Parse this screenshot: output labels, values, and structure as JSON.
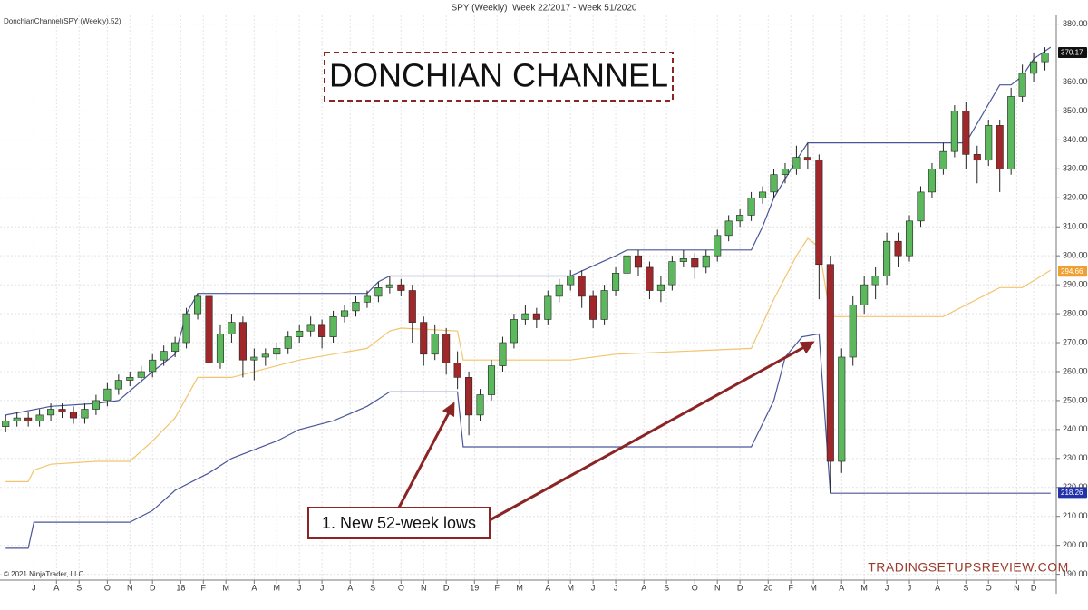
{
  "chart_data": {
    "type": "candlestick",
    "title": "SPY (Weekly)  Week 22/2017 - Week 51/2020",
    "indicator_label": "DonchianChannel(SPY (Weekly),52)",
    "copyright": "© 2021 NinjaTrader, LLC",
    "headline": "DONCHIAN CHANNEL",
    "annotation": "1. New 52-week lows",
    "watermark": "TRADINGSETUPSREVIEW.COM",
    "grid": true,
    "up_color": "#5cb85c",
    "down_color": "#a0282a",
    "xlim": [
      -1,
      186
    ],
    "ylim": [
      188,
      383
    ],
    "xticks": [
      {
        "value": 5,
        "label": "J"
      },
      {
        "value": 9,
        "label": "A"
      },
      {
        "value": 13,
        "label": "S"
      },
      {
        "value": 18,
        "label": "O"
      },
      {
        "value": 22,
        "label": "N"
      },
      {
        "value": 26,
        "label": "D"
      },
      {
        "value": 31,
        "label": "18"
      },
      {
        "value": 35,
        "label": "F"
      },
      {
        "value": 39,
        "label": "M"
      },
      {
        "value": 44,
        "label": "A"
      },
      {
        "value": 48,
        "label": "M"
      },
      {
        "value": 52,
        "label": "J"
      },
      {
        "value": 56,
        "label": "J"
      },
      {
        "value": 61,
        "label": "A"
      },
      {
        "value": 65,
        "label": "S"
      },
      {
        "value": 70,
        "label": "O"
      },
      {
        "value": 74,
        "label": "N"
      },
      {
        "value": 78,
        "label": "D"
      },
      {
        "value": 83,
        "label": "19"
      },
      {
        "value": 87,
        "label": "F"
      },
      {
        "value": 91,
        "label": "M"
      },
      {
        "value": 96,
        "label": "A"
      },
      {
        "value": 100,
        "label": "M"
      },
      {
        "value": 104,
        "label": "J"
      },
      {
        "value": 108,
        "label": "J"
      },
      {
        "value": 113,
        "label": "A"
      },
      {
        "value": 117,
        "label": "S"
      },
      {
        "value": 122,
        "label": "O"
      },
      {
        "value": 126,
        "label": "N"
      },
      {
        "value": 130,
        "label": "D"
      },
      {
        "value": 135,
        "label": "20"
      },
      {
        "value": 139,
        "label": "F"
      },
      {
        "value": 143,
        "label": "M"
      },
      {
        "value": 148,
        "label": "A"
      },
      {
        "value": 152,
        "label": "M"
      },
      {
        "value": 156,
        "label": "J"
      },
      {
        "value": 160,
        "label": "J"
      },
      {
        "value": 165,
        "label": "A"
      },
      {
        "value": 170,
        "label": "S"
      },
      {
        "value": 174,
        "label": "O"
      },
      {
        "value": 179,
        "label": "N"
      },
      {
        "value": 182,
        "label": "D"
      }
    ],
    "yticks": [
      {
        "value": 190,
        "label": "190.00"
      },
      {
        "value": 200,
        "label": "200.00"
      },
      {
        "value": 210,
        "label": "210.00"
      },
      {
        "value": 220,
        "label": "220.00"
      },
      {
        "value": 230,
        "label": "230.00"
      },
      {
        "value": 240,
        "label": "240.00"
      },
      {
        "value": 250,
        "label": "250.00"
      },
      {
        "value": 260,
        "label": "260.00"
      },
      {
        "value": 270,
        "label": "270.00"
      },
      {
        "value": 280,
        "label": "280.00"
      },
      {
        "value": 290,
        "label": "290.00"
      },
      {
        "value": 300,
        "label": "300.00"
      },
      {
        "value": 310,
        "label": "310.00"
      },
      {
        "value": 320,
        "label": "320.00"
      },
      {
        "value": 330,
        "label": "330.00"
      },
      {
        "value": 340,
        "label": "340.00"
      },
      {
        "value": 350,
        "label": "350.00"
      },
      {
        "value": 360,
        "label": "360.00"
      },
      {
        "value": 370,
        "label": "370.00"
      },
      {
        "value": 380,
        "label": "380.00"
      }
    ],
    "x": [
      0,
      2,
      4,
      6,
      8,
      10,
      12,
      14,
      16,
      18,
      20,
      22,
      24,
      26,
      28,
      30,
      32,
      34,
      36,
      38,
      40,
      42,
      44,
      46,
      48,
      50,
      52,
      54,
      56,
      58,
      60,
      62,
      64,
      66,
      68,
      70,
      72,
      74,
      76,
      78,
      80,
      82,
      84,
      86,
      88,
      90,
      92,
      94,
      96,
      98,
      100,
      102,
      104,
      106,
      108,
      110,
      112,
      114,
      116,
      118,
      120,
      122,
      124,
      126,
      128,
      130,
      132,
      134,
      136,
      138,
      140,
      142,
      144,
      146,
      148,
      150,
      152,
      154,
      156,
      158,
      160,
      162,
      164,
      166,
      168,
      170,
      172,
      174,
      176,
      178,
      180,
      182,
      184
    ],
    "open": [
      241,
      243,
      244,
      243,
      245,
      247,
      246,
      244,
      247,
      250,
      254,
      257,
      258,
      260,
      264,
      267,
      270,
      280,
      286,
      263,
      273,
      277,
      264,
      265,
      266,
      268,
      272,
      274,
      276,
      272,
      279,
      281,
      284,
      286,
      289,
      290,
      288,
      277,
      266,
      273,
      263,
      258,
      245,
      252,
      262,
      270,
      278,
      280,
      278,
      286,
      290,
      293,
      286,
      278,
      288,
      294,
      300,
      296,
      288,
      290,
      298,
      299,
      296,
      300,
      307,
      312,
      314,
      320,
      322,
      328,
      330,
      334,
      333,
      297,
      229,
      265,
      283,
      290,
      293,
      305,
      300,
      312,
      322,
      330,
      336,
      350,
      335,
      333,
      345,
      330,
      355,
      363,
      367
    ],
    "high": [
      245,
      246,
      246,
      247,
      249,
      249,
      248,
      249,
      252,
      256,
      259,
      260,
      262,
      266,
      269,
      272,
      282,
      287,
      287,
      276,
      280,
      279,
      268,
      268,
      270,
      274,
      276,
      279,
      278,
      281,
      283,
      286,
      288,
      291,
      293,
      292,
      290,
      279,
      276,
      275,
      267,
      260,
      254,
      264,
      272,
      280,
      283,
      282,
      288,
      292,
      295,
      295,
      288,
      290,
      296,
      302,
      302,
      298,
      293,
      300,
      302,
      301,
      302,
      309,
      314,
      316,
      322,
      324,
      330,
      332,
      338,
      339,
      335,
      300,
      268,
      286,
      293,
      296,
      308,
      308,
      314,
      324,
      332,
      339,
      352,
      353,
      338,
      347,
      347,
      358,
      366,
      370,
      372
    ],
    "low": [
      239,
      241,
      241,
      241,
      243,
      244,
      242,
      242,
      245,
      248,
      252,
      255,
      256,
      258,
      262,
      265,
      268,
      278,
      253,
      261,
      270,
      258,
      257,
      262,
      264,
      266,
      270,
      272,
      268,
      270,
      277,
      279,
      282,
      284,
      287,
      286,
      270,
      262,
      264,
      259,
      254,
      238,
      243,
      250,
      260,
      268,
      276,
      275,
      276,
      284,
      288,
      282,
      275,
      276,
      286,
      292,
      293,
      285,
      284,
      288,
      296,
      292,
      294,
      298,
      305,
      310,
      312,
      318,
      320,
      325,
      328,
      330,
      285,
      218,
      225,
      262,
      280,
      285,
      290,
      296,
      298,
      310,
      320,
      328,
      334,
      330,
      325,
      331,
      322,
      328,
      353,
      360,
      364
    ],
    "close": [
      243,
      244,
      243,
      245,
      247,
      246,
      244,
      247,
      250,
      254,
      257,
      258,
      260,
      264,
      267,
      270,
      280,
      286,
      263,
      273,
      277,
      264,
      265,
      266,
      268,
      272,
      274,
      276,
      272,
      279,
      281,
      284,
      286,
      289,
      290,
      288,
      277,
      266,
      273,
      263,
      258,
      245,
      252,
      262,
      270,
      278,
      280,
      278,
      286,
      290,
      293,
      286,
      278,
      288,
      294,
      300,
      296,
      288,
      290,
      298,
      299,
      296,
      300,
      307,
      312,
      314,
      320,
      322,
      328,
      330,
      334,
      333,
      297,
      229,
      265,
      283,
      290,
      293,
      305,
      300,
      312,
      322,
      330,
      336,
      350,
      335,
      333,
      345,
      330,
      355,
      363,
      367,
      370
    ],
    "channels": {
      "upper": {
        "color": "#4b5699",
        "x": [
          0,
          8,
          16,
          20,
          26,
          30,
          32,
          34,
          64,
          66,
          68,
          100,
          108,
          110,
          112,
          132,
          134,
          136,
          140,
          142,
          166,
          170,
          176,
          178,
          180,
          182,
          185
        ],
        "values": [
          245,
          248,
          249,
          250,
          260,
          266,
          280,
          287,
          287,
          291,
          293,
          293,
          300,
          302,
          302,
          302,
          310,
          320,
          333,
          339,
          339,
          339,
          359,
          359,
          362,
          368,
          372
        ]
      },
      "middle": {
        "color": "#f2c46e",
        "x": [
          0,
          4,
          5,
          8,
          16,
          22,
          26,
          30,
          34,
          40,
          52,
          64,
          68,
          70,
          80,
          81,
          100,
          108,
          132,
          136,
          140,
          142,
          144,
          146,
          166,
          176,
          180,
          185
        ],
        "values": [
          222,
          222,
          226,
          228,
          229,
          229,
          236,
          244,
          258,
          258,
          264,
          268,
          274,
          275,
          274,
          264,
          264,
          266,
          268,
          285,
          300,
          306,
          303,
          279,
          279,
          289,
          289,
          295
        ]
      },
      "lower": {
        "color": "#4b5699",
        "x": [
          0,
          4,
          5,
          22,
          26,
          30,
          36,
          40,
          48,
          52,
          58,
          64,
          68,
          70,
          80,
          81,
          132,
          136,
          138,
          141,
          144,
          146,
          185
        ],
        "values": [
          199,
          199,
          208,
          208,
          212,
          219,
          225,
          230,
          236,
          240,
          243,
          248,
          253,
          253,
          253,
          234,
          234,
          250,
          265,
          272,
          273,
          218,
          218
        ]
      }
    },
    "price_markers": [
      {
        "value": 370.17,
        "color": "#111111"
      },
      {
        "value": 294.66,
        "color": "#f0a030"
      },
      {
        "value": 218.26,
        "color": "#2233aa"
      }
    ]
  }
}
